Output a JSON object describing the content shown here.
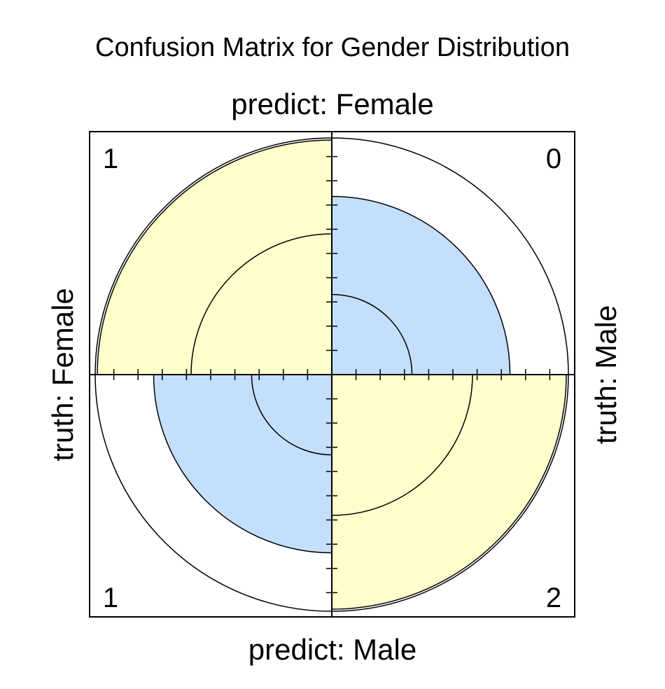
{
  "chart_data": {
    "type": "fourfold",
    "title": "Confusion Matrix for Gender Distribution",
    "row_label_top": "predict: Female",
    "row_label_bottom": "predict: Male",
    "col_label_left": "truth: Female",
    "col_label_right": "truth: Male",
    "cells": [
      {
        "quadrant": "top-left",
        "truth": "Female",
        "predict": "Female",
        "count": 1
      },
      {
        "quadrant": "top-right",
        "truth": "Male",
        "predict": "Female",
        "count": 0
      },
      {
        "quadrant": "bottom-left",
        "truth": "Female",
        "predict": "Male",
        "count": 1
      },
      {
        "quadrant": "bottom-right",
        "truth": "Male",
        "predict": "Male",
        "count": 2
      }
    ],
    "colors": {
      "correct": "#ffffcc",
      "incorrect": "#c4dffc",
      "line": "#000000"
    }
  }
}
